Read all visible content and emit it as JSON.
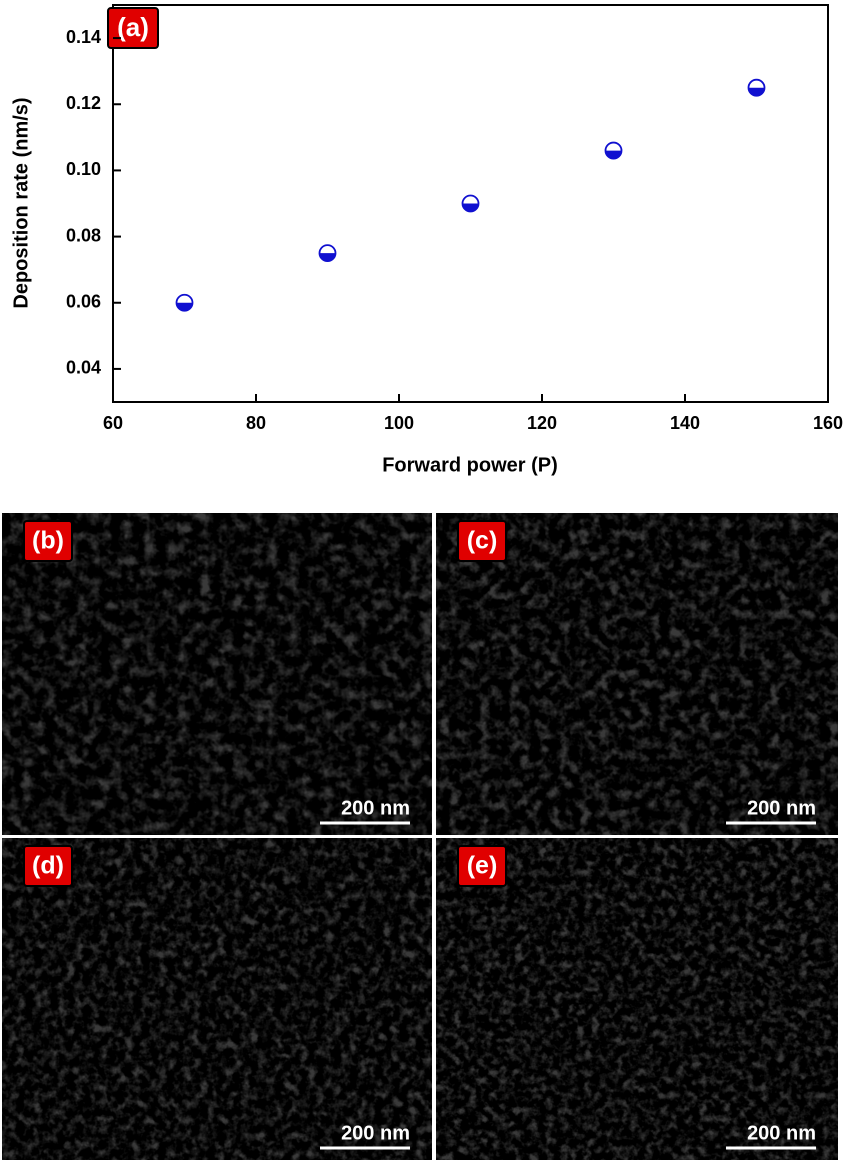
{
  "chart_data": {
    "type": "scatter",
    "annotation": "(a)",
    "x_label": "Forward power (P)",
    "y_label": "Deposition rate (nm/s)",
    "x": [
      70,
      90,
      110,
      130,
      150
    ],
    "values": [
      0.06,
      0.075,
      0.09,
      0.106,
      0.125
    ],
    "color": "#1010d0",
    "xlim": [
      60,
      160
    ],
    "xticks": [
      60,
      80,
      100,
      120,
      140,
      160
    ],
    "ylim": [
      0.03,
      0.15
    ],
    "yticks": [
      0.04,
      0.06,
      0.08,
      {
        "value": 0.1,
        "label": "0.10"
      },
      0.12,
      0.14
    ]
  },
  "panels": [
    {
      "label": "(b)",
      "scale_bar": "200 nm"
    },
    {
      "label": "(c)",
      "scale_bar": "200 nm"
    },
    {
      "label": "(d)",
      "scale_bar": "200 nm"
    },
    {
      "label": "(e)",
      "scale_bar": "200 nm"
    }
  ]
}
